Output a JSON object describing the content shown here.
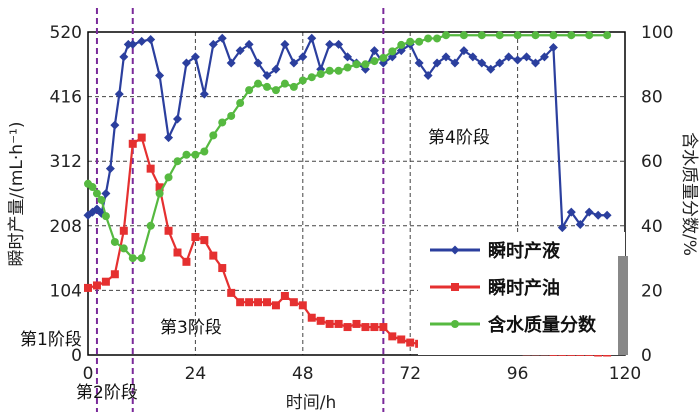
{
  "chart_data": {
    "type": "line",
    "xlabel": "时间/h",
    "ylabel_left": "瞬时产量/(mL·h⁻¹)",
    "ylabel_right": "含水质量分数/%",
    "xlim": [
      0,
      120
    ],
    "ylim_left": [
      0,
      520
    ],
    "ylim_right": [
      0,
      100
    ],
    "x_ticks": [
      0,
      24,
      48,
      72,
      96,
      120
    ],
    "y_left_ticks": [
      0,
      104,
      208,
      312,
      416,
      520
    ],
    "y_right_ticks": [
      0,
      20,
      40,
      60,
      80,
      100
    ],
    "grid": true,
    "legend_position": "bottom-right",
    "phase_lines_x": [
      2,
      10,
      66
    ],
    "phase_labels": [
      "第1阶段",
      "第2阶段",
      "第3阶段",
      "第4阶段"
    ],
    "series": [
      {
        "name": "瞬时产液",
        "axis": "left",
        "color": "#2b3f9e",
        "marker": "diamond",
        "x": [
          0,
          1,
          2,
          3,
          4,
          5,
          6,
          7,
          8,
          9,
          10,
          12,
          14,
          16,
          18,
          20,
          22,
          24,
          26,
          28,
          30,
          32,
          34,
          36,
          38,
          40,
          42,
          44,
          46,
          48,
          50,
          52,
          54,
          56,
          58,
          60,
          62,
          64,
          66,
          68,
          70,
          72,
          74,
          76,
          78,
          80,
          82,
          84,
          86,
          88,
          90,
          92,
          94,
          96,
          98,
          100,
          102,
          104,
          106,
          108,
          110,
          112,
          114,
          116
        ],
        "y": [
          225,
          230,
          235,
          228,
          260,
          300,
          370,
          420,
          480,
          500,
          500,
          505,
          508,
          450,
          350,
          380,
          470,
          480,
          420,
          500,
          510,
          470,
          490,
          500,
          470,
          450,
          460,
          500,
          470,
          480,
          510,
          460,
          500,
          500,
          480,
          470,
          460,
          490,
          470,
          480,
          490,
          500,
          470,
          450,
          470,
          480,
          470,
          490,
          480,
          470,
          460,
          470,
          480,
          475,
          480,
          470,
          480,
          495,
          205,
          230,
          210,
          230,
          225,
          225
        ]
      },
      {
        "name": "瞬时产油",
        "axis": "left",
        "color": "#e53030",
        "marker": "square",
        "x": [
          0,
          2,
          4,
          6,
          8,
          10,
          12,
          14,
          16,
          18,
          20,
          22,
          24,
          26,
          28,
          30,
          32,
          34,
          36,
          38,
          40,
          42,
          44,
          46,
          48,
          50,
          52,
          54,
          56,
          58,
          60,
          62,
          64,
          66,
          68,
          70,
          72,
          74,
          76,
          78,
          80,
          82,
          84,
          86,
          88,
          90,
          92,
          94,
          96,
          98,
          100,
          102,
          104,
          106,
          108,
          110,
          112,
          114,
          116
        ],
        "y": [
          108,
          112,
          118,
          130,
          200,
          340,
          350,
          300,
          270,
          200,
          165,
          150,
          190,
          185,
          160,
          140,
          100,
          85,
          85,
          85,
          85,
          80,
          95,
          85,
          80,
          60,
          55,
          50,
          50,
          45,
          50,
          45,
          45,
          45,
          30,
          25,
          20,
          18,
          15,
          15,
          12,
          12,
          10,
          10,
          9,
          8,
          8,
          7,
          7,
          6,
          6,
          6,
          5,
          5,
          5,
          5,
          5,
          4,
          4
        ]
      },
      {
        "name": "含水质量分数",
        "axis": "right",
        "color": "#56b940",
        "marker": "circle",
        "x": [
          0,
          1,
          2,
          3,
          4,
          6,
          8,
          10,
          12,
          14,
          16,
          18,
          20,
          22,
          24,
          26,
          28,
          30,
          32,
          34,
          36,
          38,
          40,
          42,
          44,
          46,
          48,
          50,
          52,
          54,
          56,
          58,
          60,
          62,
          64,
          66,
          68,
          70,
          72,
          74,
          76,
          78,
          80,
          84,
          88,
          92,
          96,
          100,
          104,
          108,
          112,
          116
        ],
        "y": [
          53,
          52,
          50,
          48,
          43,
          35,
          33,
          30,
          30,
          40,
          50,
          55,
          60,
          62,
          62,
          63,
          68,
          72,
          74,
          78,
          82,
          84,
          83,
          82,
          84,
          83,
          85,
          86,
          87,
          88,
          88,
          89,
          90,
          90,
          91,
          92,
          94,
          96,
          97,
          97,
          98,
          98,
          99,
          99,
          99,
          99,
          99,
          99,
          99,
          99,
          99,
          99
        ]
      }
    ]
  }
}
